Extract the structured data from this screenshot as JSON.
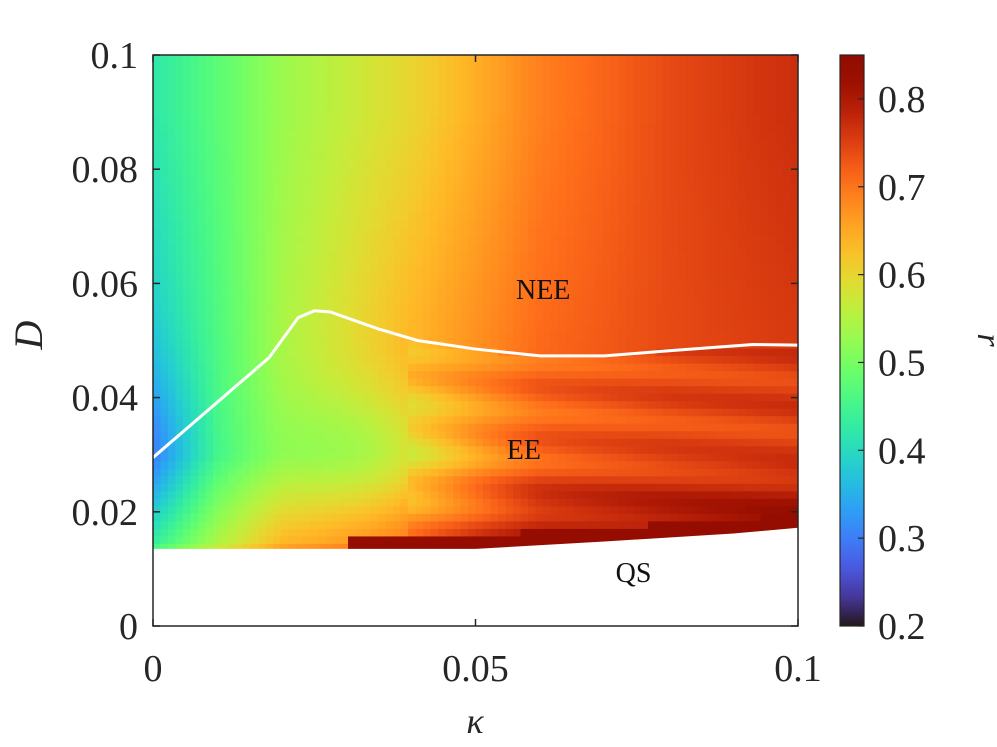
{
  "chart_data": {
    "type": "heatmap",
    "xlabel": "κ",
    "ylabel": "D",
    "colorbar_label": "r",
    "xlim": [
      0,
      0.1
    ],
    "ylim": [
      0,
      0.1
    ],
    "clim": [
      0.2,
      0.85
    ],
    "x_ticks": [
      0,
      0.05,
      0.1
    ],
    "x_tick_labels": [
      "0",
      "0.05",
      "0.1"
    ],
    "y_ticks": [
      0,
      0.02,
      0.04,
      0.06,
      0.08,
      0.1
    ],
    "y_tick_labels": [
      "0",
      "0.02",
      "0.04",
      "0.06",
      "0.08",
      "0.1"
    ],
    "colorbar_ticks": [
      0.2,
      0.3,
      0.4,
      0.5,
      0.6,
      0.7,
      0.8
    ],
    "colorbar_tick_labels": [
      "0.2",
      "0.3",
      "0.4",
      "0.5",
      "0.6",
      "0.7",
      "0.8"
    ],
    "colormap": "turbo",
    "region_labels": [
      {
        "text": "NEE",
        "kappa": 0.0605,
        "D": 0.059
      },
      {
        "text": "EE",
        "kappa": 0.0575,
        "D": 0.031
      },
      {
        "text": "QS",
        "kappa": 0.0745,
        "D": 0.0095
      }
    ],
    "boundary_curve": {
      "name": "EE/NEE boundary",
      "color": "#ffffff",
      "kappa": [
        0,
        0.018,
        0.0225,
        0.025,
        0.0275,
        0.035,
        0.041,
        0.05,
        0.06,
        0.07,
        0.08,
        0.093,
        0.1
      ],
      "D": [
        0.0295,
        0.047,
        0.054,
        0.0552,
        0.055,
        0.052,
        0.05,
        0.0485,
        0.0473,
        0.0473,
        0.0482,
        0.0493,
        0.0492
      ]
    },
    "quiescent_boundary": {
      "name": "QS lower edge of data",
      "kappa": [
        0,
        0.05,
        0.07,
        0.09,
        0.1
      ],
      "D": [
        0.0135,
        0.0135,
        0.0148,
        0.0162,
        0.0172
      ]
    },
    "field_description_values": {
      "kappa_samples": [
        0,
        0.02,
        0.04,
        0.06,
        0.08,
        0.1
      ],
      "r_at_D_0.09": [
        0.42,
        0.53,
        0.6,
        0.69,
        0.74,
        0.77
      ],
      "r_at_D_0.03": [
        0.36,
        0.55,
        0.66,
        0.72,
        0.74,
        0.75
      ],
      "r_at_D_0.015": [
        0.45,
        0.64,
        0.71,
        0.8,
        0.82,
        0.84
      ]
    }
  }
}
